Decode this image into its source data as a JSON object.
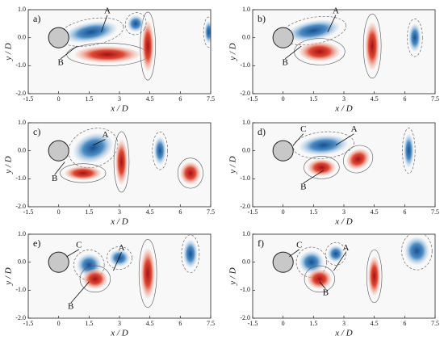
{
  "chart_data": [
    {
      "type": "contour",
      "panel_label": "a)",
      "xlabel": "x / D",
      "ylabel": "y / D",
      "xlim": [
        -1.5,
        7.5
      ],
      "ylim": [
        -2.0,
        1.0
      ],
      "xticks": [
        -1.5,
        0,
        1.5,
        3,
        4.5,
        6,
        7.5
      ],
      "yticks": [
        {
          "value": 1.0,
          "label": "1.0"
        },
        {
          "value": 0.0,
          "label": "0.0"
        },
        {
          "value": -1.0,
          "label": "-1.0"
        },
        {
          "value": -2.0,
          "label": "-2.0"
        }
      ],
      "annotations": [
        "A",
        "B"
      ]
    },
    {
      "type": "contour",
      "panel_label": "b)",
      "xlabel": "x / D",
      "ylabel": "y / D",
      "xlim": [
        -1.5,
        7.5
      ],
      "ylim": [
        -2.0,
        1.0
      ],
      "xticks": [
        -1.5,
        0,
        1.5,
        3,
        4.5,
        6,
        7.5
      ],
      "yticks": [
        {
          "value": 1.0,
          "label": "1.0"
        },
        {
          "value": 0.0,
          "label": "0.0"
        },
        {
          "value": -1.0,
          "label": "-1.0"
        },
        {
          "value": -2.0,
          "label": "-2.0"
        }
      ],
      "annotations": [
        "A",
        "B"
      ]
    },
    {
      "type": "contour",
      "panel_label": "c)",
      "xlabel": "x / D",
      "ylabel": "y / D",
      "xlim": [
        -1.5,
        7.5
      ],
      "ylim": [
        -2.0,
        1.0
      ],
      "xticks": [
        -1.5,
        0,
        1.5,
        3,
        4.5,
        6,
        7.5
      ],
      "yticks": [
        {
          "value": 1.0,
          "label": "1.0"
        },
        {
          "value": 0.0,
          "label": "0.0"
        },
        {
          "value": -1.0,
          "label": "-1.0"
        },
        {
          "value": -2.0,
          "label": "-2.0"
        }
      ],
      "annotations": [
        "A",
        "B"
      ]
    },
    {
      "type": "contour",
      "panel_label": "d)",
      "xlabel": "x / D",
      "ylabel": "y / D",
      "xlim": [
        -1.5,
        7.5
      ],
      "ylim": [
        -2.0,
        1.0
      ],
      "xticks": [
        -1.5,
        0,
        1.5,
        3,
        4.5,
        6,
        7.5
      ],
      "yticks": [
        {
          "value": 1.0,
          "label": "1.0"
        },
        {
          "value": 0.0,
          "label": "0.0"
        },
        {
          "value": -1.0,
          "label": "-1.0"
        },
        {
          "value": -2.0,
          "label": "-2.0"
        }
      ],
      "annotations": [
        "C",
        "A",
        "B"
      ]
    },
    {
      "type": "contour",
      "panel_label": "e)",
      "xlabel": "x / D",
      "ylabel": "y / D",
      "xlim": [
        -1.5,
        7.5
      ],
      "ylim": [
        -2.0,
        1.0
      ],
      "xticks": [
        -1.5,
        0,
        1.5,
        3,
        4.5,
        6,
        7.5
      ],
      "yticks": [
        {
          "value": 1.0,
          "label": "1.0"
        },
        {
          "value": 0.0,
          "label": "0.0"
        },
        {
          "value": -1.0,
          "label": "-1.0"
        },
        {
          "value": -2.0,
          "label": "-2.0"
        }
      ],
      "annotations": [
        "C",
        "A",
        "B"
      ]
    },
    {
      "type": "contour",
      "panel_label": "f)",
      "xlabel": "x / D",
      "ylabel": "y / D",
      "xlim": [
        -1.5,
        7.5
      ],
      "ylim": [
        -2.0,
        1.0
      ],
      "xticks": [
        -1.5,
        0,
        1.5,
        3,
        4.5,
        6,
        7.5
      ],
      "yticks": [
        {
          "value": 1.0,
          "label": "1.0"
        },
        {
          "value": 0.0,
          "label": "0.0"
        },
        {
          "value": -1.0,
          "label": "-1.0"
        },
        {
          "value": -2.0,
          "label": "-2.0"
        }
      ],
      "annotations": [
        "C",
        "A",
        "B"
      ]
    }
  ]
}
